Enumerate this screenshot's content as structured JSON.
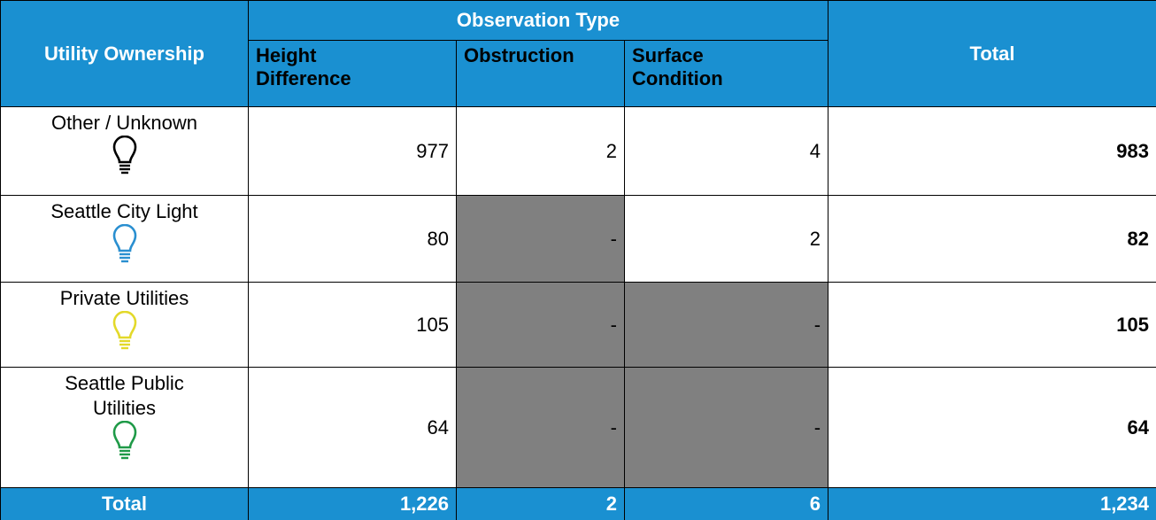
{
  "header": {
    "row_label": "Utility Ownership",
    "group": "Observation Type",
    "columns": [
      "Height Difference",
      "Obstruction",
      "Surface Condition"
    ],
    "total": "Total"
  },
  "rows": [
    {
      "label": "Other / Unknown",
      "icon_color": "#000000",
      "values": [
        "977",
        "2",
        "4"
      ],
      "total": "983"
    },
    {
      "label": "Seattle City Light",
      "icon_color": "#2a8fd0",
      "values": [
        "80",
        "-",
        "2"
      ],
      "total": "82"
    },
    {
      "label": "Private Utilities",
      "icon_color": "#e3d92a",
      "values": [
        "105",
        "-",
        "-"
      ],
      "total": "105"
    },
    {
      "label": "Seattle Public Utilities",
      "icon_color": "#1f9a48",
      "values": [
        "64",
        "-",
        "-"
      ],
      "total": "64"
    }
  ],
  "footer": {
    "label": "Total",
    "values": [
      "1,226",
      "2",
      "6"
    ],
    "total": "1,234"
  }
}
